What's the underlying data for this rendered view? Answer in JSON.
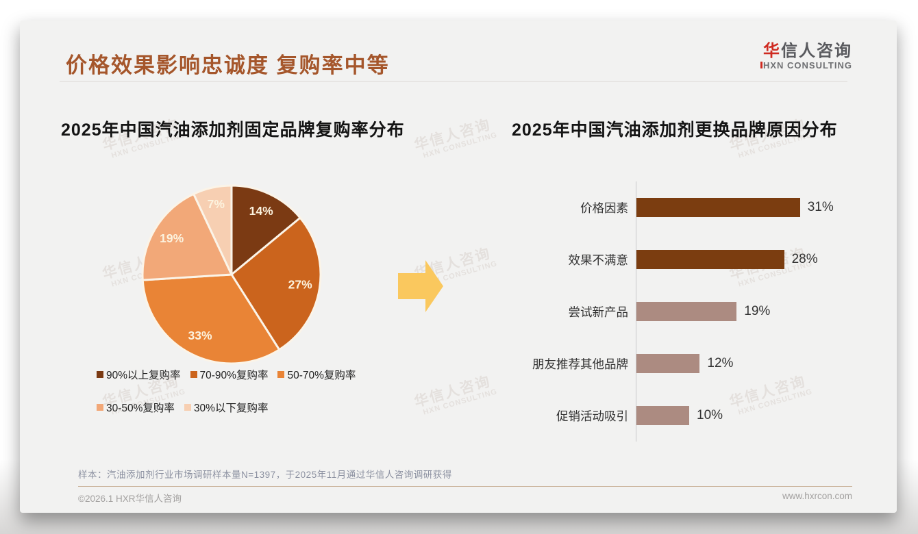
{
  "slide": {
    "title": "价格效果影响忠诚度 复购率中等",
    "logo": {
      "cn_first": "华",
      "cn_rest": "信人咨询",
      "en": "HXN CONSULTING"
    },
    "watermark": {
      "line1": "华信人咨询",
      "line2": "HXN CONSULTING"
    },
    "footnote": "样本：汽油添加剂行业市场调研样本量N=1397，于2025年11月通过华信人咨询调研获得",
    "footer": {
      "left": "©2026.1 HXR华信人咨询",
      "right": "www.hxrcon.com"
    }
  },
  "chart_data": [
    {
      "type": "pie",
      "title": "2025年中国汽油添加剂固定品牌复购率分布",
      "categories": [
        "90%以上复购率",
        "70-90%复购率",
        "50-70%复购率",
        "30-50%复购率",
        "30%以下复购率"
      ],
      "values": [
        14,
        27,
        33,
        19,
        7
      ],
      "data_labels": [
        "14%",
        "27%",
        "33%",
        "19%",
        "7%"
      ],
      "colors": [
        "#7B3A13",
        "#CB641D",
        "#E98436",
        "#F2A878",
        "#F7CFB2"
      ],
      "start_angle": "top",
      "direction": "clockwise",
      "legend_position": "bottom",
      "legend_rows": [
        [
          0,
          1,
          2
        ],
        [
          3,
          4
        ]
      ]
    },
    {
      "type": "bar",
      "title": "2025年中国汽油添加剂更换品牌原因分布",
      "orientation": "horizontal",
      "categories": [
        "价格因素",
        "效果不满意",
        "尝试新产品",
        "朋友推荐其他品牌",
        "促销活动吸引"
      ],
      "values": [
        31,
        28,
        19,
        12,
        10
      ],
      "value_labels": [
        "31%",
        "28%",
        "19%",
        "12%",
        "10%"
      ],
      "bar_colors": [
        "#7B3D10",
        "#7B3D10",
        "#AC8B81",
        "#AC8B81",
        "#AC8B81"
      ],
      "xlim": [
        0,
        35
      ],
      "grid": false,
      "axis_line": "left-vertical",
      "value_label_position": "outside-end"
    }
  ],
  "theme": {
    "card_bg": "#F2F2F1",
    "title_color": "#A5562B",
    "logo_red": "#CF2A20",
    "logo_gray": "#595A5E",
    "pie_stroke": "#FBF4E8",
    "pie_label_color": "#FCF3DF",
    "axis_color": "#C9C9C9",
    "arrow_color": "#FAC85E",
    "watermark_color": "#D9D2CD",
    "footnote_color": "#8B90A0",
    "footer_line_color": "#C9B199",
    "footer_text_color": "#A3A1A0"
  }
}
